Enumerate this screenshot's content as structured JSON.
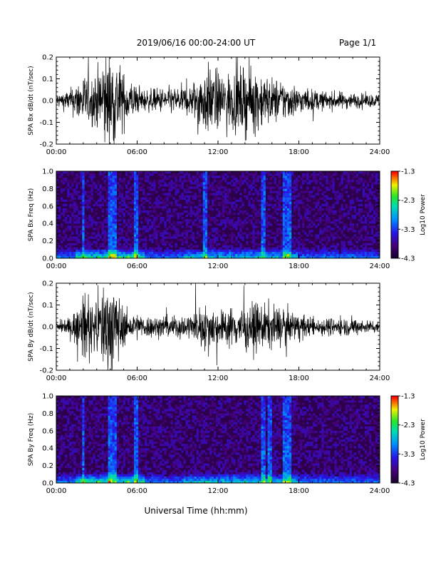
{
  "header": {
    "title": "2019/06/16  00:00-24:00 UT",
    "page": "Page 1/1"
  },
  "xaxis_title": "Universal Time (hh:mm)",
  "chart_data": [
    {
      "type": "line",
      "panel": "bx-waveform",
      "ylabel": "SPA Bx dB/dt (nT/sec)",
      "xlim": [
        0,
        24
      ],
      "ylim": [
        -0.2,
        0.2
      ],
      "x_ticks": [
        "00:00",
        "06:00",
        "12:00",
        "18:00",
        "24:00"
      ],
      "y_ticks": [
        "-0.2",
        "-0.1",
        "0.0",
        "0.1",
        "0.2"
      ],
      "series": [
        {
          "x": [
            0,
            1,
            2,
            2.5,
            3,
            3.5,
            4,
            4.5,
            5,
            5.5,
            6,
            6.5,
            7,
            8,
            9,
            10,
            10.5,
            11,
            11.5,
            12,
            12.5,
            13,
            13.5,
            14,
            14.5,
            15,
            15.5,
            16,
            16.5,
            17,
            17.5,
            18,
            19,
            20,
            21,
            22,
            23,
            24
          ],
          "amp": [
            0.03,
            0.05,
            0.12,
            0.1,
            0.13,
            0.22,
            0.22,
            0.2,
            0.12,
            0.1,
            0.06,
            0.05,
            0.05,
            0.06,
            0.06,
            0.07,
            0.12,
            0.15,
            0.16,
            0.13,
            0.12,
            0.13,
            0.14,
            0.15,
            0.15,
            0.14,
            0.12,
            0.1,
            0.1,
            0.09,
            0.08,
            0.06,
            0.05,
            0.04,
            0.04,
            0.035,
            0.03,
            0.03
          ]
        }
      ]
    },
    {
      "type": "heatmap",
      "panel": "bx-spectrogram",
      "ylabel": "SPA Bx Freq (Hz)",
      "xlim": [
        0,
        24
      ],
      "ylim": [
        0,
        1
      ],
      "x_ticks": [
        "00:00",
        "06:00",
        "12:00",
        "18:00",
        "24:00"
      ],
      "y_ticks": [
        "0.0",
        "0.2",
        "0.4",
        "0.6",
        "0.8",
        "1.0"
      ],
      "bursts_hr": [
        2.0,
        4.0,
        4.3,
        5.9,
        11.0,
        15.4,
        17.0,
        17.3
      ],
      "colorbar": {
        "label": "Log10 Power",
        "min": -4.3,
        "max": -1.3,
        "ticks": [
          "-1.3",
          "-2.3",
          "-3.3",
          "-4.3"
        ]
      }
    },
    {
      "type": "line",
      "panel": "by-waveform",
      "ylabel": "SPA By dB/dt (nT/sec)",
      "xlim": [
        0,
        24
      ],
      "ylim": [
        -0.2,
        0.2
      ],
      "x_ticks": [
        "00:00",
        "06:00",
        "12:00",
        "18:00",
        "24:00"
      ],
      "y_ticks": [
        "-0.2",
        "-0.1",
        "0.0",
        "0.1",
        "0.2"
      ],
      "series": [
        {
          "x": [
            0,
            1,
            2,
            2.5,
            3,
            3.5,
            4,
            4.5,
            5,
            5.5,
            6,
            6.5,
            7,
            8,
            9,
            10,
            10.5,
            11,
            11.5,
            12,
            12.5,
            13,
            13.5,
            14,
            14.5,
            15,
            15.5,
            16,
            16.5,
            17,
            17.5,
            18,
            19,
            20,
            21,
            22,
            23,
            24
          ],
          "amp": [
            0.02,
            0.04,
            0.14,
            0.12,
            0.12,
            0.2,
            0.22,
            0.18,
            0.08,
            0.06,
            0.06,
            0.05,
            0.05,
            0.05,
            0.05,
            0.06,
            0.08,
            0.1,
            0.1,
            0.08,
            0.08,
            0.09,
            0.1,
            0.1,
            0.1,
            0.11,
            0.1,
            0.1,
            0.09,
            0.08,
            0.07,
            0.06,
            0.04,
            0.04,
            0.04,
            0.04,
            0.03,
            0.03
          ]
        }
      ]
    },
    {
      "type": "heatmap",
      "panel": "by-spectrogram",
      "ylabel": "SPA By Freq (Hz)",
      "xlim": [
        0,
        24
      ],
      "ylim": [
        0,
        1
      ],
      "x_ticks": [
        "00:00",
        "06:00",
        "12:00",
        "18:00",
        "24:00"
      ],
      "y_ticks": [
        "0.0",
        "0.2",
        "0.4",
        "0.6",
        "0.8",
        "1.0"
      ],
      "bursts_hr": [
        2.0,
        4.0,
        4.3,
        5.9,
        15.4,
        15.9,
        17.0,
        17.3
      ],
      "colorbar": {
        "label": "Log10 Power",
        "min": -4.3,
        "max": -1.3,
        "ticks": [
          "-1.3",
          "-2.3",
          "-3.3",
          "-4.3"
        ]
      }
    }
  ]
}
